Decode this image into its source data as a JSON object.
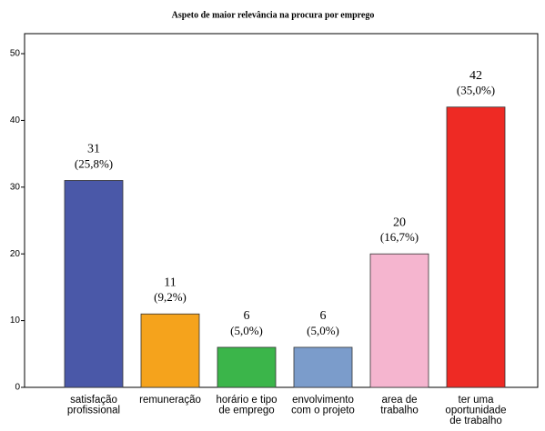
{
  "chart_data": {
    "type": "bar",
    "title": "Aspeto de maior relevância na procura por emprego",
    "categories": [
      "satisfação profissional",
      "remuneração",
      "horário e tipo de emprego",
      "envolvimento com o projeto",
      "area de trabalho",
      "ter uma oportunidade de trabalho"
    ],
    "values": [
      31,
      11,
      6,
      6,
      20,
      42
    ],
    "percentages": [
      25.8,
      9.2,
      5.0,
      5.0,
      16.7,
      35.0
    ],
    "percentage_labels": [
      "(25,8%)",
      "(9,2%)",
      "(5,0%)",
      "(5,0%)",
      "(16,7%)",
      "(35,0%)"
    ],
    "colors": [
      "#4a58a8",
      "#f5a31c",
      "#3bb54a",
      "#7b9ccb",
      "#f5b5cf",
      "#ee2a24"
    ],
    "ylim": [
      0,
      53
    ],
    "yticks": [
      0,
      10,
      20,
      30,
      40,
      50
    ]
  }
}
